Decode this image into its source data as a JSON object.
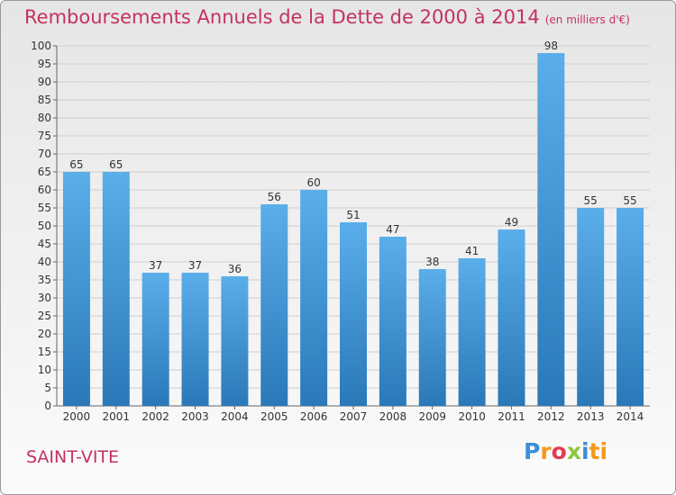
{
  "header": {
    "title": "Remboursements Annuels de la Dette de 2000 à 2014",
    "unit": "(en milliers d'€)"
  },
  "footer": {
    "city": "SAINT-VITE",
    "logo": "Proxiti"
  },
  "colors": {
    "accent": "#c4325e",
    "bar_light": "#5aaeea",
    "bar_dark": "#2a78b8"
  },
  "chart_data": {
    "type": "bar",
    "title": "Remboursements Annuels de la Dette de 2000 à 2014",
    "subtitle": "(en milliers d'€)",
    "xlabel": "",
    "ylabel": "",
    "categories": [
      "2000",
      "2001",
      "2002",
      "2003",
      "2004",
      "2005",
      "2006",
      "2007",
      "2008",
      "2009",
      "2010",
      "2011",
      "2012",
      "2013",
      "2014"
    ],
    "values": [
      65,
      65,
      37,
      37,
      36,
      56,
      60,
      51,
      47,
      38,
      41,
      49,
      98,
      55,
      55
    ],
    "ylim": [
      0,
      100
    ],
    "ytick_step": 5,
    "grid": true,
    "legend": "none"
  }
}
